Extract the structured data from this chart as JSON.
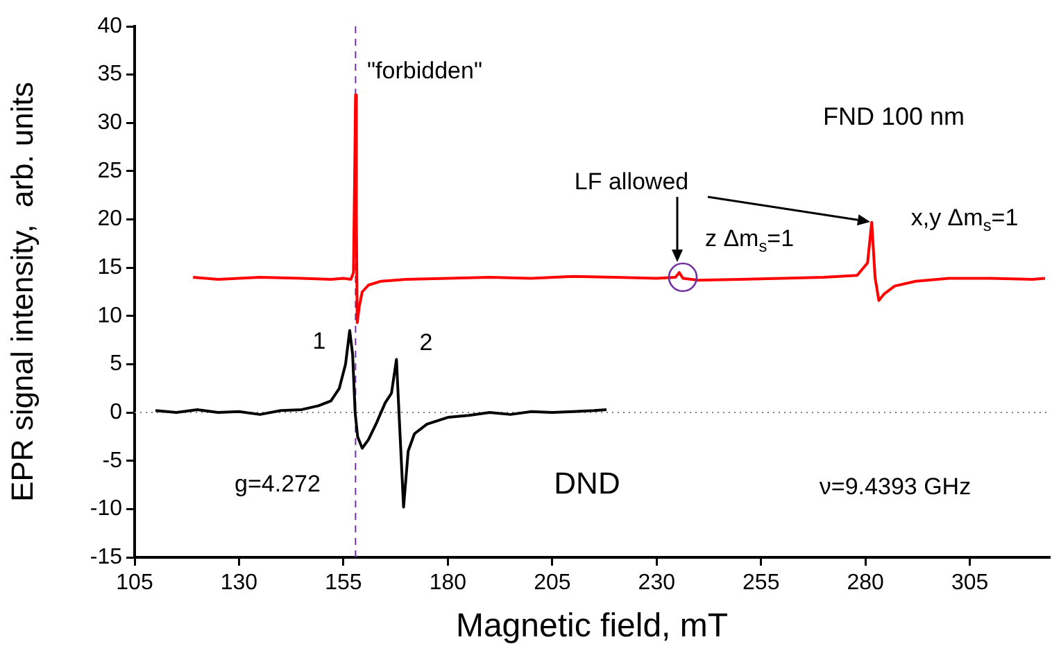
{
  "chart_data": {
    "type": "line",
    "xlabel": "Magnetic field, mT",
    "ylabel": "EPR signal intensity,  arb. units",
    "xlim": [
      105,
      324
    ],
    "xticks": [
      105,
      130,
      155,
      180,
      205,
      230,
      255,
      280,
      305
    ],
    "ylim": [
      -15,
      40
    ],
    "yticks": [
      -15,
      -10,
      -5,
      0,
      5,
      10,
      15,
      20,
      25,
      30,
      35,
      40
    ],
    "marker": "none",
    "line_style": "solid",
    "legend": false,
    "series": [
      {
        "color": "#ff0000",
        "x": [
          119,
          125,
          135,
          145,
          152,
          155,
          156.8,
          157.4,
          157.7,
          157.9,
          158.1,
          158.3,
          158.8,
          159.5,
          161,
          164,
          170,
          180,
          190,
          200,
          210,
          220,
          230,
          234.5,
          235.4,
          236.3,
          240,
          250,
          260,
          270,
          278,
          280.5,
          281.5,
          282.3,
          283.2,
          284.5,
          287,
          292,
          300,
          310,
          320,
          323
        ],
        "values": [
          14.0,
          13.8,
          14.0,
          13.9,
          13.8,
          13.9,
          13.8,
          14.5,
          25,
          32.9,
          20,
          9.3,
          11,
          12.5,
          13.2,
          13.6,
          13.8,
          13.9,
          14.0,
          13.9,
          14.1,
          14.0,
          13.9,
          14.0,
          14.5,
          13.9,
          13.7,
          13.8,
          13.9,
          14.0,
          14.2,
          15.5,
          19.7,
          14,
          11.6,
          12.3,
          13.1,
          13.6,
          13.9,
          13.9,
          13.8,
          13.9
        ]
      },
      {
        "color": "#000000",
        "x": [
          110,
          115,
          120,
          125,
          130,
          135,
          140,
          145,
          149,
          152,
          154,
          155.5,
          156.5,
          157.2,
          157.8,
          158.4,
          159.5,
          161,
          163,
          165,
          166.5,
          167.7,
          168.3,
          169.4,
          170.5,
          172,
          175,
          180,
          185,
          190,
          195,
          200,
          205,
          210,
          215,
          218
        ],
        "values": [
          0.2,
          0.0,
          0.3,
          0.0,
          0.1,
          -0.2,
          0.2,
          0.3,
          0.7,
          1.2,
          2.5,
          5,
          8.5,
          6,
          0,
          -2.5,
          -3.7,
          -2.8,
          -1,
          1,
          2,
          5.5,
          0,
          -9.8,
          -4,
          -2.2,
          -1.2,
          -0.5,
          -0.3,
          0,
          -0.2,
          0.1,
          0.0,
          0.1,
          0.2,
          0.3
        ]
      }
    ],
    "ref_lines": [
      {
        "axis": "x",
        "value": 157.9,
        "color": "#7030a0",
        "line_style": "dashed"
      },
      {
        "axis": "y",
        "value": 0,
        "color": "#808080",
        "line_style": "dotted"
      }
    ],
    "annotations": [
      "\"forbidden\"",
      "1",
      "2",
      "LF allowed",
      "z Δm$_{s}$=1",
      "x,y Δm$_{s}$=1",
      "g=4.272",
      "FND 100 nm",
      "DND",
      "ν=9.4393 GHz"
    ]
  }
}
